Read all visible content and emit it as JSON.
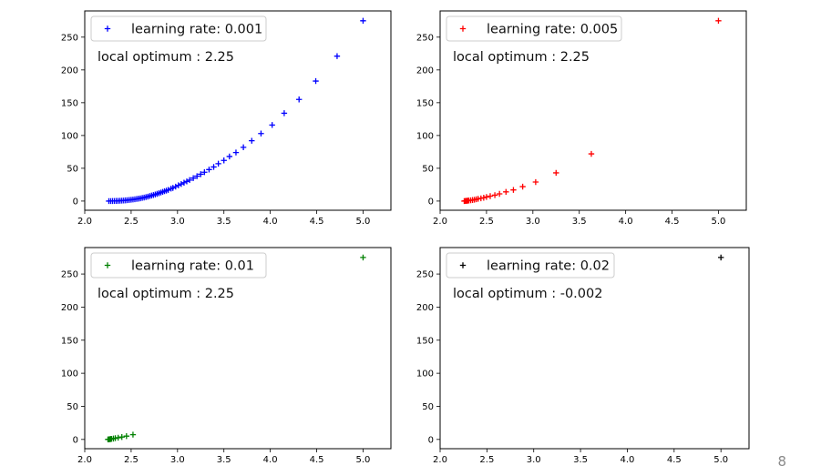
{
  "page_number": "8",
  "chart_data": [
    {
      "type": "scatter",
      "marker": "plus",
      "color": "#0000ff",
      "legend": "learning rate: 0.001",
      "legend_location": "top-left",
      "annotation": "local optimum : 2.25",
      "xlim": [
        2.0,
        5.3
      ],
      "ylim": [
        -14,
        290
      ],
      "xticks": [
        "2.0",
        "2.5",
        "3.0",
        "3.5",
        "4.0",
        "4.5",
        "5.0"
      ],
      "yticks": [
        "0",
        "50",
        "100",
        "150",
        "200",
        "250"
      ],
      "x": [
        5.0,
        4.72,
        4.49,
        4.31,
        4.15,
        4.02,
        3.9,
        3.8,
        3.71,
        3.63,
        3.56,
        3.5,
        3.44,
        3.39,
        3.34,
        3.29,
        3.25,
        3.21,
        3.17,
        3.13,
        3.1,
        3.07,
        3.04,
        3.01,
        2.98,
        2.95,
        2.93,
        2.9,
        2.88,
        2.86,
        2.84,
        2.82,
        2.8,
        2.78,
        2.76,
        2.74,
        2.72,
        2.7,
        2.68,
        2.66,
        2.64,
        2.62,
        2.6,
        2.58,
        2.56,
        2.54,
        2.52,
        2.5,
        2.48,
        2.46,
        2.44,
        2.42,
        2.4,
        2.38,
        2.36,
        2.34,
        2.32,
        2.3,
        2.28,
        2.26
      ],
      "y": [
        275,
        221,
        183,
        155,
        134,
        116,
        103,
        92,
        82,
        74,
        68,
        62,
        57,
        52,
        48,
        44,
        41,
        38,
        35,
        32,
        30,
        28,
        26,
        24,
        22,
        20,
        19,
        17,
        16,
        15,
        14,
        13,
        12,
        11,
        10,
        9.2,
        8.4,
        7.6,
        6.8,
        6.1,
        5.4,
        4.8,
        4.2,
        3.7,
        3.2,
        2.8,
        2.4,
        2.0,
        1.7,
        1.4,
        1.1,
        0.9,
        0.7,
        0.5,
        0.35,
        0.22,
        0.12,
        0.06,
        0.02,
        0.0
      ]
    },
    {
      "type": "scatter",
      "marker": "plus",
      "color": "#ff0000",
      "legend": "learning rate: 0.005",
      "legend_location": "top-left",
      "annotation": "local optimum : 2.25",
      "xlim": [
        2.0,
        5.3
      ],
      "ylim": [
        -14,
        290
      ],
      "xticks": [
        "2.0",
        "2.5",
        "3.0",
        "3.5",
        "4.0",
        "4.5",
        "5.0"
      ],
      "yticks": [
        "0",
        "50",
        "100",
        "150",
        "200",
        "250"
      ],
      "x": [
        5.0,
        3.63,
        3.25,
        3.03,
        2.89,
        2.79,
        2.71,
        2.64,
        2.59,
        2.54,
        2.5,
        2.47,
        2.44,
        2.41,
        2.39,
        2.37,
        2.35,
        2.33,
        2.31,
        2.3,
        2.29,
        2.28,
        2.27,
        2.26
      ],
      "y": [
        275,
        72,
        43,
        29,
        22,
        17,
        14,
        11,
        9,
        7.5,
        6.2,
        5.1,
        4.2,
        3.4,
        2.7,
        2.1,
        1.6,
        1.2,
        0.9,
        0.6,
        0.4,
        0.25,
        0.12,
        0.0
      ]
    },
    {
      "type": "scatter",
      "marker": "plus",
      "color": "#008000",
      "legend": "learning rate:   0.01",
      "legend_location": "top-left",
      "annotation": "local optimum : 2.25",
      "xlim": [
        2.0,
        5.3
      ],
      "ylim": [
        -14,
        290
      ],
      "xticks": [
        "2.0",
        "2.5",
        "3.0",
        "3.5",
        "4.0",
        "4.5",
        "5.0"
      ],
      "yticks": [
        "0",
        "50",
        "100",
        "150",
        "200",
        "250"
      ],
      "x": [
        5.0,
        2.52,
        2.45,
        2.4,
        2.36,
        2.33,
        2.31,
        2.29,
        2.28,
        2.27,
        2.26,
        2.25
      ],
      "y": [
        275,
        7.2,
        5.0,
        3.6,
        2.6,
        1.9,
        1.3,
        0.9,
        0.6,
        0.3,
        0.1,
        0.0
      ]
    },
    {
      "type": "scatter",
      "marker": "plus",
      "color": "#000000",
      "legend": "learning rate: 0.02",
      "legend_location": "top-left",
      "annotation": "local optimum : -0.002",
      "xlim": [
        2.0,
        5.3
      ],
      "ylim": [
        -14,
        290
      ],
      "xticks": [
        "2.0",
        "2.5",
        "3.0",
        "3.5",
        "4.0",
        "4.5",
        "5.0"
      ],
      "yticks": [
        "0",
        "50",
        "100",
        "150",
        "200",
        "250"
      ],
      "x": [
        5.0
      ],
      "y": [
        275
      ]
    }
  ]
}
